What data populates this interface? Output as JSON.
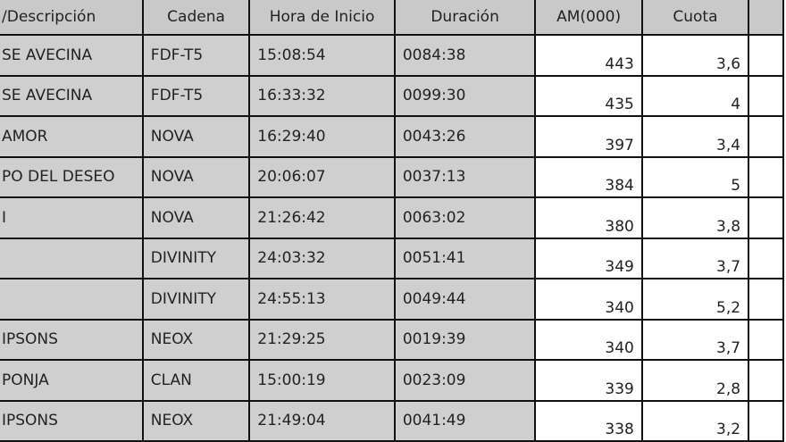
{
  "table": {
    "headers": [
      "/Descripción",
      "Cadena",
      "Hora de Inicio",
      "Duración",
      "AM(000)",
      "Cuota",
      ""
    ],
    "rows": [
      [
        "SE AVECINA",
        "FDF-T5",
        "15:08:54",
        "0084:38",
        "443",
        "3,6"
      ],
      [
        "SE AVECINA",
        "FDF-T5",
        "16:33:32",
        "0099:30",
        "435",
        "4"
      ],
      [
        " AMOR",
        "NOVA",
        "16:29:40",
        "0043:26",
        "397",
        "3,4"
      ],
      [
        "PO DEL DESEO",
        "NOVA",
        "20:06:07",
        "0037:13",
        "384",
        "5"
      ],
      [
        "I",
        "NOVA",
        "21:26:42",
        "0063:02",
        "380",
        "3,8"
      ],
      [
        "",
        "DIVINITY",
        "24:03:32",
        "0051:41",
        "349",
        "3,7"
      ],
      [
        "",
        "DIVINITY",
        "24:55:13",
        "0049:44",
        "340",
        "5,2"
      ],
      [
        "IPSONS",
        "NEOX",
        "21:29:25",
        "0019:39",
        "340",
        "3,7"
      ],
      [
        "PONJA",
        "CLAN",
        "15:00:19",
        "0023:09",
        "339",
        "2,8"
      ],
      [
        "IPSONS",
        "NEOX",
        "21:49:04",
        "0041:49",
        "338",
        "3,2"
      ]
    ]
  }
}
